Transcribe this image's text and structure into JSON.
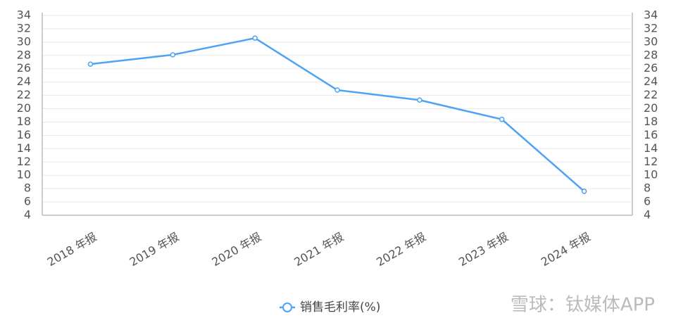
{
  "chart_data": {
    "type": "line",
    "categories": [
      "2018 年报",
      "2019 年报",
      "2020 年报",
      "2021 年报",
      "2022 年报",
      "2023 年报",
      "2024 年报"
    ],
    "series": [
      {
        "name": "销售毛利率(%)",
        "color": "#4da3f5",
        "values": [
          26.7,
          28.1,
          30.6,
          22.8,
          21.3,
          18.4,
          7.6
        ]
      }
    ],
    "ylim": [
      4,
      34
    ],
    "yticks": [
      4,
      6,
      8,
      10,
      12,
      14,
      16,
      18,
      20,
      22,
      24,
      26,
      28,
      30,
      32,
      34
    ],
    "y2lim": [
      4,
      34
    ],
    "y2ticks": [
      4,
      6,
      8,
      10,
      12,
      14,
      16,
      18,
      20,
      22,
      24,
      26,
      28,
      30,
      32,
      34
    ],
    "grid": true,
    "legend": "bottom",
    "watermark": "雪球：钛媒体APP"
  }
}
